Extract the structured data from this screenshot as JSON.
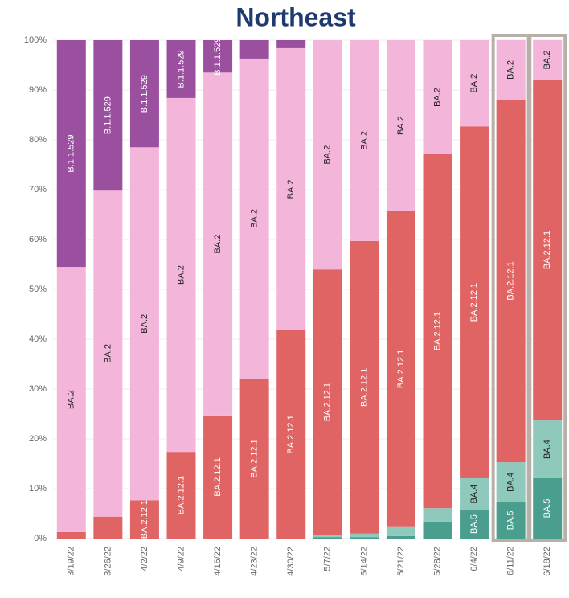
{
  "chart_data": {
    "type": "stacked_bar",
    "title": "Northeast",
    "categories": [
      "3/19/22",
      "3/26/22",
      "4/2/22",
      "4/9/22",
      "4/16/22",
      "4/23/22",
      "4/30/22",
      "5/7/22",
      "5/14/22",
      "5/21/22",
      "5/28/22",
      "6/4/22",
      "6/11/22",
      "6/18/22"
    ],
    "series": [
      {
        "name": "BA.5",
        "color": "#4a9e8e",
        "label_color": "#ffffff",
        "values": [
          0,
          0,
          0,
          0,
          0,
          0,
          0,
          0.3,
          0.3,
          0.5,
          3.4,
          5.8,
          7.3,
          12.1
        ]
      },
      {
        "name": "BA.4",
        "color": "#8ec9bc",
        "label_color": "#222222",
        "values": [
          0,
          0,
          0,
          0,
          0,
          0,
          0,
          0.5,
          0.7,
          1.8,
          2.7,
          6.3,
          8,
          11.6
        ]
      },
      {
        "name": "BA.2.12.1",
        "color": "#e06464",
        "label_color": "#ffffff",
        "values": [
          1.3,
          4.4,
          7.7,
          17.4,
          24.7,
          32.1,
          41.8,
          53.2,
          58.7,
          63.5,
          71,
          70.6,
          72.8,
          68.4
        ]
      },
      {
        "name": "BA.2",
        "color": "#f3b6da",
        "label_color": "#222222",
        "values": [
          53.2,
          65.4,
          70.8,
          71,
          68.8,
          64.2,
          56.6,
          46,
          40.3,
          34.2,
          22.9,
          17.3,
          11.9,
          7.9
        ]
      },
      {
        "name": "B.1.1.529",
        "color": "#9b4f9f",
        "label_color": "#ffffff",
        "values": [
          45.5,
          30.2,
          21.5,
          11.6,
          6.5,
          3.7,
          1.6,
          0,
          0,
          0,
          0,
          0,
          0,
          0
        ]
      }
    ],
    "ylim": [
      0,
      100
    ],
    "yticks": [
      {
        "value": 0,
        "label": "0%"
      },
      {
        "value": 10,
        "label": "10%"
      },
      {
        "value": 20,
        "label": "20%"
      },
      {
        "value": 30,
        "label": "30%"
      },
      {
        "value": 40,
        "label": "40%"
      },
      {
        "value": 50,
        "label": "50%"
      },
      {
        "value": 60,
        "label": "60%"
      },
      {
        "value": 70,
        "label": "70%"
      },
      {
        "value": 80,
        "label": "80%"
      },
      {
        "value": 90,
        "label": "90%"
      },
      {
        "value": 100,
        "label": "100%"
      }
    ],
    "grid": true,
    "highlight": [
      "6/11/22",
      "6/18/22"
    ]
  }
}
